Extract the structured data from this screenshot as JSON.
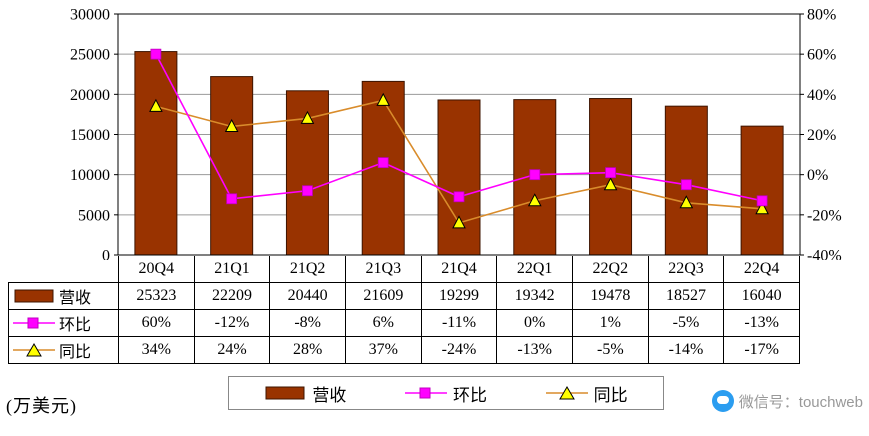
{
  "unit_label": "(万美元)",
  "watermark": {
    "icon": "wechat-blue-icon",
    "text": "微信号：touchweb"
  },
  "colors": {
    "bar": "#993300",
    "bar_edge": "#3d1400",
    "huanbi": "#ff00ff",
    "tongbi_line": "#d98c2b",
    "tongbi_marker": "#ffff00",
    "grid": "#9a9a9a",
    "axis": "#000000"
  },
  "chart_data": {
    "type": "bar",
    "subtype": "bar+line combo, lines on secondary percent axis",
    "categories": [
      "20Q4",
      "21Q1",
      "21Q2",
      "21Q3",
      "21Q4",
      "22Q1",
      "22Q2",
      "22Q3",
      "22Q4"
    ],
    "series": [
      {
        "name": "营收",
        "type": "bar",
        "axis": "left",
        "values": [
          25323,
          22209,
          20440,
          21609,
          19299,
          19342,
          19478,
          18527,
          16040
        ]
      },
      {
        "name": "环比",
        "type": "line",
        "axis": "right",
        "marker": "square",
        "values": [
          60,
          -12,
          -8,
          6,
          -11,
          0,
          1,
          -5,
          -13
        ],
        "labels": [
          "60%",
          "-12%",
          "-8%",
          "6%",
          "-11%",
          "0%",
          "1%",
          "-5%",
          "-13%"
        ]
      },
      {
        "name": "同比",
        "type": "line",
        "axis": "right",
        "marker": "triangle",
        "values": [
          34,
          24,
          28,
          37,
          -24,
          -13,
          -5,
          -14,
          -17
        ],
        "labels": [
          "34%",
          "24%",
          "28%",
          "37%",
          "-24%",
          "-13%",
          "-5%",
          "-14%",
          "-17%"
        ]
      }
    ],
    "title": "",
    "xlabel": "",
    "ylabel_left": "万美元",
    "left_axis": {
      "min": 0,
      "max": 30000,
      "step": 5000,
      "ticks": [
        "30000",
        "25000",
        "20000",
        "15000",
        "10000",
        "5000",
        "0"
      ]
    },
    "right_axis": {
      "min": -40,
      "max": 80,
      "step": 20,
      "ticks": [
        "80%",
        "60%",
        "40%",
        "20%",
        "0%",
        "-20%",
        "-40%"
      ]
    },
    "grid": true,
    "legend_position": "bottom"
  },
  "table": {
    "rows": [
      {
        "label": "营收",
        "marker": "bar",
        "cells": [
          "25323",
          "22209",
          "20440",
          "21609",
          "19299",
          "19342",
          "19478",
          "18527",
          "16040"
        ]
      },
      {
        "label": "环比",
        "marker": "square",
        "cells": [
          "60%",
          "-12%",
          "-8%",
          "6%",
          "-11%",
          "0%",
          "1%",
          "-5%",
          "-13%"
        ]
      },
      {
        "label": "同比",
        "marker": "triangle",
        "cells": [
          "34%",
          "24%",
          "28%",
          "37%",
          "-24%",
          "-13%",
          "-5%",
          "-14%",
          "-17%"
        ]
      }
    ]
  },
  "legend": {
    "items": [
      {
        "label": "营收",
        "marker": "bar"
      },
      {
        "label": "环比",
        "marker": "square"
      },
      {
        "label": "同比",
        "marker": "triangle"
      }
    ]
  }
}
